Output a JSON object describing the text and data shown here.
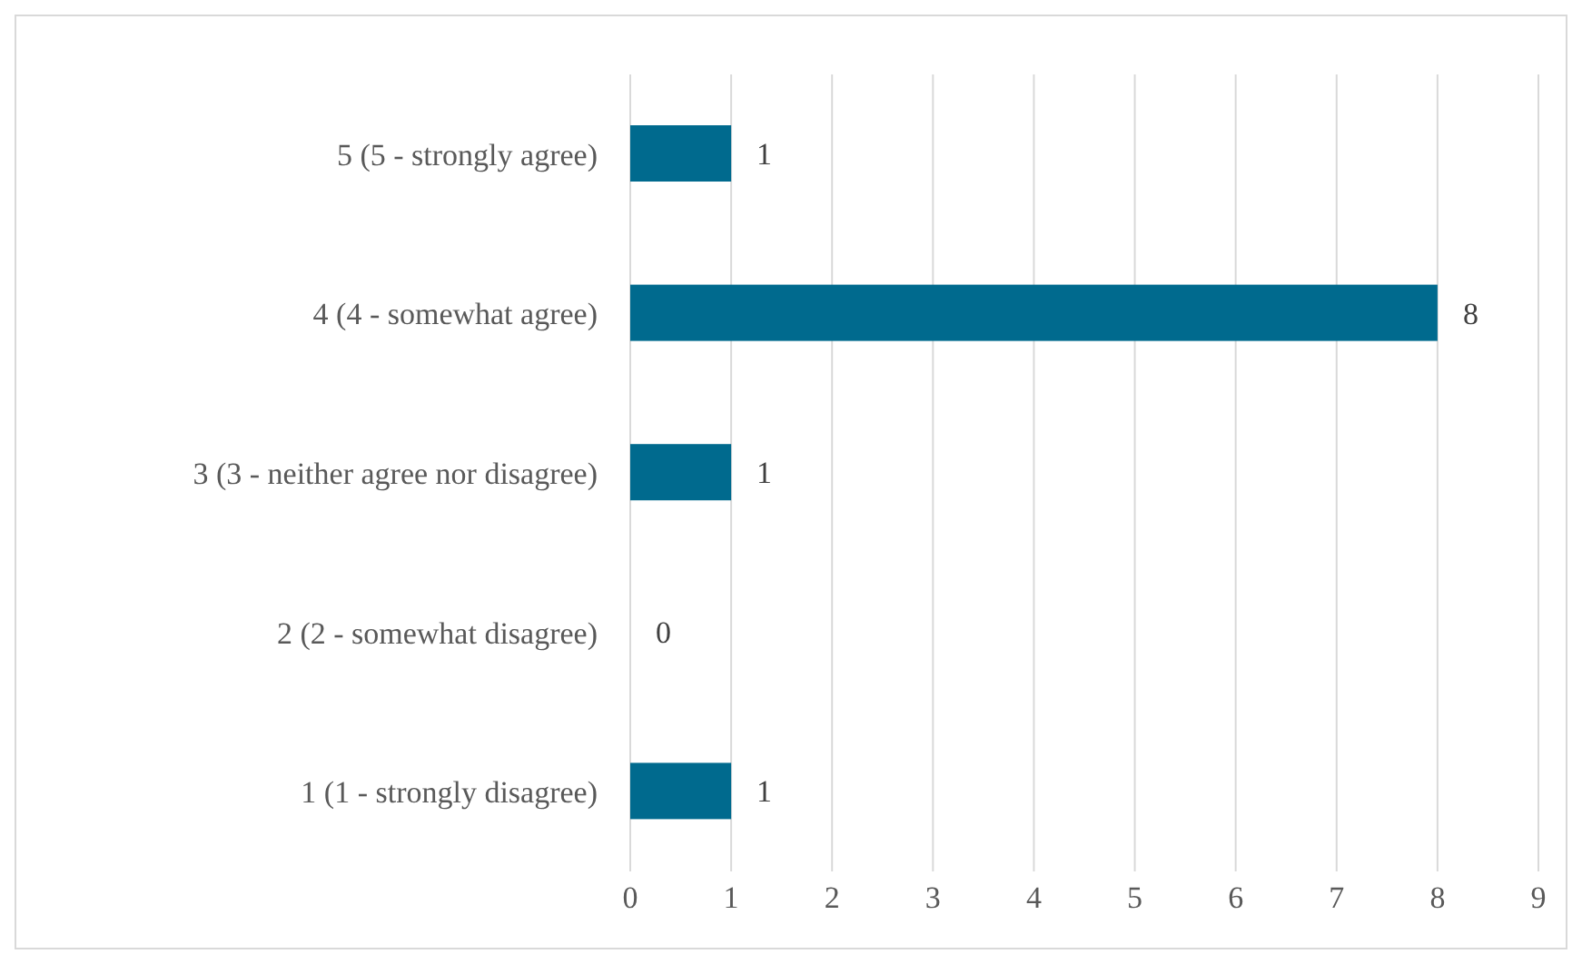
{
  "chart_data": {
    "type": "bar",
    "orientation": "horizontal",
    "categories": [
      "5 (5 - strongly agree)",
      "4 (4 - somewhat agree)",
      "3 (3 - neither agree nor disagree)",
      "2 (2 - somewhat disagree)",
      "1 (1 - strongly disagree)"
    ],
    "values": [
      1,
      8,
      1,
      0,
      1
    ],
    "color": "#006a8e",
    "xlim": [
      0,
      9
    ],
    "xticks": [
      0,
      1,
      2,
      3,
      4,
      5,
      6,
      7,
      8,
      9
    ],
    "grid": "x",
    "data_labels": true,
    "legend": false
  }
}
